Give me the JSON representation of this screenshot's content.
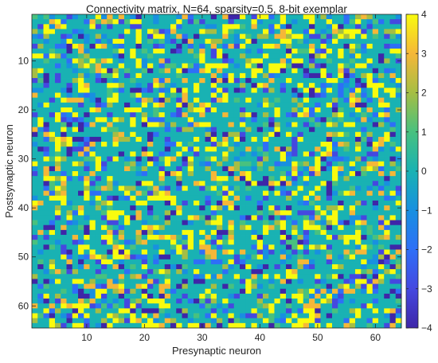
{
  "chart_data": {
    "type": "heatmap",
    "title": "Connectivity matrix, N=64, sparsity=0.5, 8-bit exemplar",
    "xlabel": "Presynaptic neuron",
    "ylabel": "Postsynaptic neuron",
    "n": 64,
    "sparsity": 0.5,
    "x_ticks": [
      10,
      20,
      30,
      40,
      50,
      60
    ],
    "y_ticks": [
      10,
      20,
      30,
      40,
      50,
      60
    ],
    "colorbar": {
      "min": -4,
      "max": 4,
      "ticks": [
        4,
        3,
        2,
        1,
        0,
        -1,
        -2,
        -3,
        -4
      ],
      "colormap": "parula",
      "placement": "right"
    },
    "colors": {
      "low": "#3e26a8",
      "zero": "#19b2b3",
      "high": "#f9fb0e"
    },
    "grid": false
  }
}
